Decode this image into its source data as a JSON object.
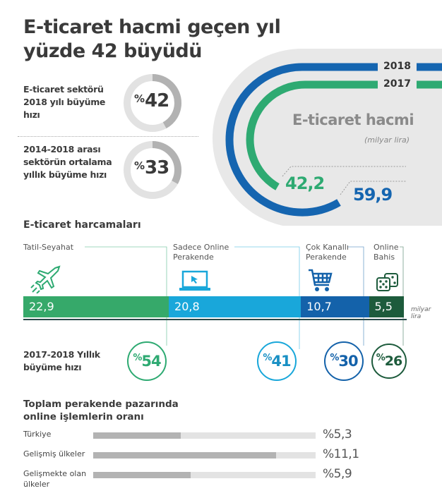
{
  "title": "E-ticaret hacmi geçen yıl yüzde 42 büyüdü",
  "stats": [
    {
      "label": "E-ticaret sektörü 2018 yılı büyüme hızı",
      "prefix": "%",
      "value": "42",
      "percent": 42
    },
    {
      "label": "2014-2018 arası sektörün ortalama yıllık büyüme hızı",
      "prefix": "%",
      "value": "33",
      "percent": 33
    }
  ],
  "chart_data": [
    {
      "type": "arc",
      "title": "E-ticaret hacmi",
      "unit": "(milyar lira)",
      "series": [
        {
          "name": "2018",
          "value": 59.9,
          "label": "59,9",
          "color": "#1565b0"
        },
        {
          "name": "2017",
          "value": 42.2,
          "label": "42,2",
          "color": "#2eaa72"
        }
      ]
    },
    {
      "type": "bar",
      "stacked": true,
      "title": "E-ticaret harcamaları",
      "unit": "milyar lira",
      "categories": [
        "Tatil-Seyahat",
        "Sadece Online Perakende",
        "Çok Kanallı Perakende",
        "Online Bahis"
      ],
      "values": [
        22.9,
        20.8,
        10.7,
        5.5
      ],
      "value_labels": [
        "22,9",
        "20,8",
        "10,7",
        "5,5"
      ],
      "icons": [
        "airplane-icon",
        "laptop-icon",
        "shopping-cart-icon",
        "dice-icon"
      ],
      "colors": [
        "#36a96a",
        "#19a7da",
        "#1462aa",
        "#1d5b3c"
      ],
      "growth_label": "2017-2018 Yıllık büyüme hızı",
      "growth": [
        {
          "prefix": "%",
          "value": "54"
        },
        {
          "prefix": "%",
          "value": "41"
        },
        {
          "prefix": "%",
          "value": "30"
        },
        {
          "prefix": "%",
          "value": "26"
        }
      ]
    },
    {
      "type": "bar",
      "orientation": "horizontal",
      "title": "Toplam perakende pazarında online işlemlerin oranı",
      "categories": [
        "Türkiye",
        "Gelişmiş ülkeler",
        "Gelişmekte olan ülkeler"
      ],
      "values": [
        5.3,
        11.1,
        5.9
      ],
      "value_labels": [
        "%5,3",
        "%11,1",
        "%5,9"
      ],
      "xlim": [
        0,
        13.5
      ],
      "colors": {
        "fill": "#b3b3b3",
        "track": "#e3e3e3"
      }
    }
  ]
}
